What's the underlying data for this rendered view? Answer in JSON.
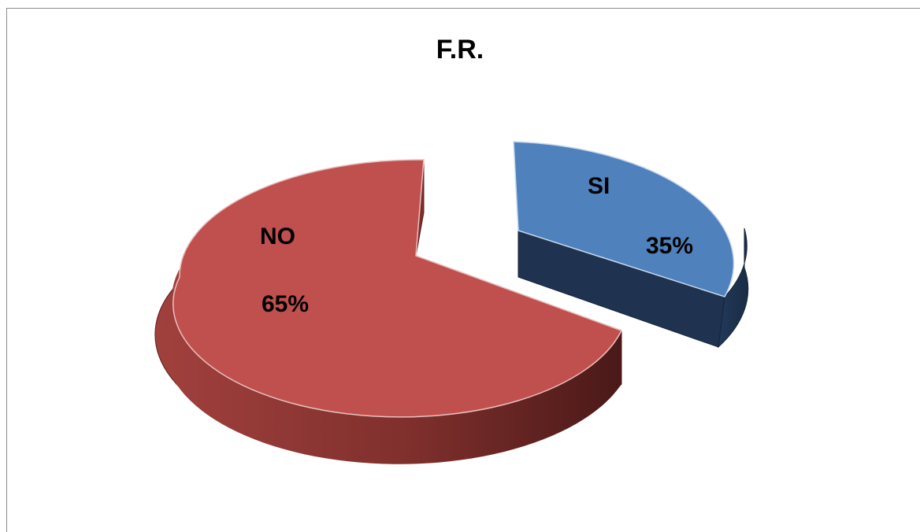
{
  "chart_data": {
    "type": "pie",
    "title": "F.R.",
    "slices": [
      {
        "label": "SI",
        "value": 35,
        "value_label": "35%",
        "color": "#4F81BD",
        "side_color": "#1F3350"
      },
      {
        "label": "NO",
        "value": 65,
        "value_label": "65%",
        "color": "#C0504D",
        "side_color": "#5A1F1E"
      }
    ],
    "exploded": [
      "SI"
    ],
    "style": "3d"
  }
}
